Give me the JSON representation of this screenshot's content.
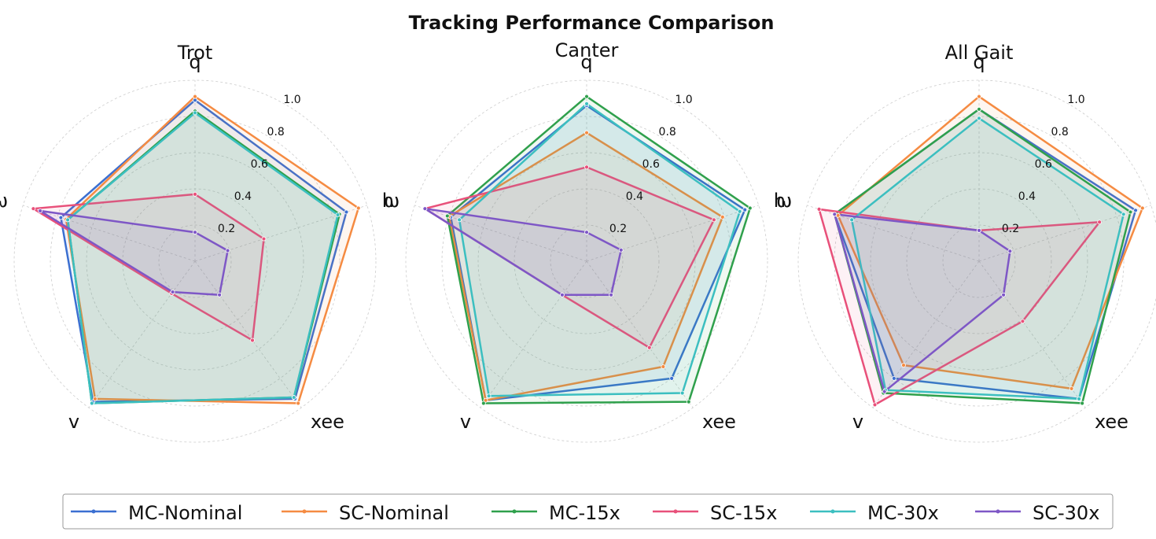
{
  "title": "Tracking Performance Comparison",
  "legend": "bottom",
  "chart_data": [
    {
      "type": "radar",
      "title": "Trot",
      "categories": [
        "q",
        "h",
        "xee",
        "v",
        "ω"
      ],
      "ylim": [
        0,
        1
      ],
      "yticks": [
        0.2,
        0.4,
        0.6,
        0.8,
        {
          "value": 1,
          "label": "1.0"
        }
      ],
      "grid": true,
      "series": [
        {
          "name": "MC-Nominal",
          "color": "#3b6fd1",
          "values": [
            0.89,
            0.88,
            0.94,
            0.96,
            0.78
          ]
        },
        {
          "name": "SC-Nominal",
          "color": "#f58b42",
          "values": [
            0.91,
            0.95,
            0.97,
            0.94,
            0.75
          ]
        },
        {
          "name": "MC-15x",
          "color": "#2fa04c",
          "values": [
            0.83,
            0.84,
            0.93,
            0.97,
            0.74
          ]
        },
        {
          "name": "SC-15x",
          "color": "#e8507a",
          "values": [
            0.37,
            0.4,
            0.54,
            0.22,
            0.94
          ]
        },
        {
          "name": "MC-30x",
          "color": "#3cbfc0",
          "values": [
            0.82,
            0.83,
            0.93,
            0.97,
            0.74
          ]
        },
        {
          "name": "SC-30x",
          "color": "#7e57c6",
          "values": [
            0.16,
            0.19,
            0.23,
            0.21,
            0.9
          ]
        }
      ]
    },
    {
      "type": "radar",
      "title": "Canter",
      "categories": [
        "q",
        "h",
        "xee",
        "v",
        "ω"
      ],
      "ylim": [
        0,
        1
      ],
      "yticks": [
        0.2,
        0.4,
        0.6,
        0.8,
        {
          "value": 1,
          "label": "1.0"
        }
      ],
      "grid": true,
      "series": [
        {
          "name": "MC-Nominal",
          "color": "#3b6fd1",
          "values": [
            0.86,
            0.92,
            0.8,
            0.95,
            0.79
          ]
        },
        {
          "name": "SC-Nominal",
          "color": "#f58b42",
          "values": [
            0.71,
            0.79,
            0.72,
            0.95,
            0.8
          ]
        },
        {
          "name": "MC-15x",
          "color": "#2fa04c",
          "values": [
            0.91,
            0.95,
            0.96,
            0.97,
            0.81
          ]
        },
        {
          "name": "SC-15x",
          "color": "#e8507a",
          "values": [
            0.52,
            0.74,
            0.59,
            0.23,
            0.94
          ]
        },
        {
          "name": "MC-30x",
          "color": "#3cbfc0",
          "values": [
            0.87,
            0.89,
            0.9,
            0.92,
            0.74
          ]
        },
        {
          "name": "SC-30x",
          "color": "#7e57c6",
          "values": [
            0.16,
            0.2,
            0.23,
            0.23,
            0.94
          ]
        }
      ]
    },
    {
      "type": "radar",
      "title": "All Gait",
      "categories": [
        "q",
        "h",
        "xee",
        "v",
        "ω"
      ],
      "ylim": [
        0,
        1
      ],
      "yticks": [
        0.2,
        0.4,
        0.6,
        0.8,
        {
          "value": 1,
          "label": "1.0"
        }
      ],
      "grid": true,
      "series": [
        {
          "name": "MC-Nominal",
          "color": "#3b6fd1",
          "values": [
            0.84,
            0.91,
            0.94,
            0.8,
            0.84
          ]
        },
        {
          "name": "SC-Nominal",
          "color": "#f58b42",
          "values": [
            0.91,
            0.95,
            0.87,
            0.71,
            0.82
          ]
        },
        {
          "name": "MC-15x",
          "color": "#2fa04c",
          "values": [
            0.84,
            0.88,
            0.97,
            0.9,
            0.84
          ]
        },
        {
          "name": "SC-15x",
          "color": "#e8507a",
          "values": [
            0.17,
            0.7,
            0.41,
            0.98,
            0.93
          ]
        },
        {
          "name": "MC-30x",
          "color": "#3cbfc0",
          "values": [
            0.79,
            0.84,
            0.94,
            0.88,
            0.74
          ]
        },
        {
          "name": "SC-30x",
          "color": "#7e57c6",
          "values": [
            0.17,
            0.18,
            0.23,
            0.89,
            0.84
          ]
        }
      ]
    }
  ]
}
